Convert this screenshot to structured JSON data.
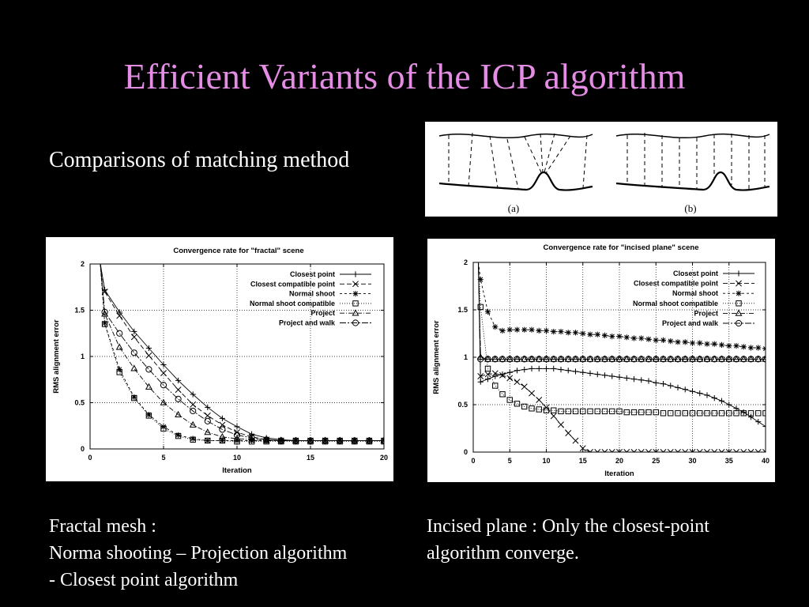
{
  "slide": {
    "title": "Efficient Variants of the ICP algorithm",
    "title_color": "#e58de5",
    "subtitle": "Comparisons of matching method",
    "diagram": {
      "label_a": "(a)",
      "label_b": "(b)"
    },
    "caption_left": [
      "Fractal mesh :",
      "Norma shooting – Projection algorithm",
      "- Closest point algorithm"
    ],
    "caption_right": [
      "Incised plane : Only the closest-point",
      "algorithm converge."
    ]
  },
  "chart_data": [
    {
      "type": "line",
      "title": "Convergence rate for \"fractal\" scene",
      "xlabel": "Iteration",
      "ylabel": "RMS alignment error",
      "xlim": [
        0,
        20
      ],
      "ylim": [
        0,
        2
      ],
      "xticks": [
        0,
        5,
        10,
        15,
        20
      ],
      "yticks": [
        0,
        0.5,
        1,
        1.5,
        2
      ],
      "ytick_labels": [
        "0",
        "0.5",
        "1",
        "1.5",
        "2"
      ],
      "grid": true,
      "legend_position": "top-right",
      "series": [
        {
          "name": "Closest point",
          "marker": "plus",
          "dash": "",
          "x": [
            0.7,
            1,
            2,
            3,
            4,
            5,
            6,
            7,
            8,
            9,
            10,
            11,
            12,
            13,
            14,
            15,
            16,
            17,
            18,
            19,
            20
          ],
          "y": [
            2.0,
            1.72,
            1.48,
            1.27,
            1.09,
            0.91,
            0.74,
            0.59,
            0.45,
            0.33,
            0.24,
            0.16,
            0.12,
            0.1,
            0.09,
            0.09,
            0.09,
            0.09,
            0.09,
            0.09,
            0.09
          ]
        },
        {
          "name": "Closest compatible point",
          "marker": "x",
          "dash": "6,3",
          "x": [
            0.7,
            1,
            2,
            3,
            4,
            5,
            6,
            7,
            8,
            9,
            10,
            11,
            12,
            13,
            14,
            15,
            16,
            17,
            18,
            19,
            20
          ],
          "y": [
            2.0,
            1.7,
            1.44,
            1.21,
            1.01,
            0.82,
            0.64,
            0.48,
            0.36,
            0.26,
            0.18,
            0.13,
            0.1,
            0.09,
            0.09,
            0.09,
            0.09,
            0.09,
            0.09,
            0.09,
            0.09
          ]
        },
        {
          "name": "Normal shoot",
          "marker": "star",
          "dash": "3,3",
          "x": [
            0.7,
            1,
            2,
            3,
            4,
            5,
            6,
            7,
            8,
            9,
            10,
            11,
            12,
            13,
            14,
            15,
            16,
            17,
            18,
            19,
            20
          ],
          "y": [
            2.0,
            1.36,
            0.86,
            0.56,
            0.37,
            0.24,
            0.15,
            0.11,
            0.09,
            0.09,
            0.09,
            0.09,
            0.09,
            0.09,
            0.09,
            0.09,
            0.09,
            0.09,
            0.09,
            0.09,
            0.09
          ]
        },
        {
          "name": "Normal shoot compatible",
          "marker": "square",
          "dash": "1,2",
          "x": [
            0.7,
            1,
            2,
            3,
            4,
            5,
            6,
            7,
            8,
            9,
            10,
            11,
            12,
            13,
            14,
            15,
            16,
            17,
            18,
            19,
            20
          ],
          "y": [
            2.0,
            1.35,
            0.83,
            0.55,
            0.36,
            0.22,
            0.14,
            0.1,
            0.09,
            0.09,
            0.08,
            0.08,
            0.08,
            0.08,
            0.08,
            0.08,
            0.08,
            0.08,
            0.08,
            0.08,
            0.08
          ]
        },
        {
          "name": "Project",
          "marker": "triangle",
          "dash": "6,2,1,2",
          "x": [
            0.7,
            1,
            2,
            3,
            4,
            5,
            6,
            7,
            8,
            9,
            10,
            11,
            12,
            13,
            14,
            15,
            16,
            17,
            18,
            19,
            20
          ],
          "y": [
            2.0,
            1.46,
            1.1,
            0.87,
            0.67,
            0.5,
            0.37,
            0.26,
            0.18,
            0.13,
            0.11,
            0.1,
            0.09,
            0.09,
            0.09,
            0.09,
            0.09,
            0.09,
            0.09,
            0.09,
            0.09
          ]
        },
        {
          "name": "Project and walk",
          "marker": "circle",
          "dash": "8,2,2,2",
          "x": [
            0.7,
            1,
            2,
            3,
            4,
            5,
            6,
            7,
            8,
            9,
            10,
            11,
            12,
            13,
            14,
            15,
            16,
            17,
            18,
            19,
            20
          ],
          "y": [
            2.0,
            1.48,
            1.25,
            1.04,
            0.86,
            0.69,
            0.54,
            0.41,
            0.3,
            0.21,
            0.15,
            0.12,
            0.1,
            0.09,
            0.09,
            0.09,
            0.09,
            0.09,
            0.09,
            0.09,
            0.09
          ]
        }
      ]
    },
    {
      "type": "line",
      "title": "Convergence rate for \"incised plane\" scene",
      "xlabel": "Iteration",
      "ylabel": "RMS alignment error",
      "xlim": [
        0,
        40
      ],
      "ylim": [
        0,
        2
      ],
      "xticks": [
        0,
        5,
        10,
        15,
        20,
        25,
        30,
        35,
        40
      ],
      "yticks": [
        0,
        0.5,
        1,
        1.5,
        2
      ],
      "ytick_labels": [
        "0",
        "0.5",
        "1",
        "1.5",
        "2"
      ],
      "grid": true,
      "legend_position": "top-right",
      "series": [
        {
          "name": "Closest point",
          "marker": "plus",
          "dash": "",
          "x": [
            0.7,
            1,
            2,
            3,
            4,
            5,
            6,
            7,
            8,
            9,
            10,
            11,
            12,
            13,
            14,
            15,
            16,
            17,
            18,
            19,
            20,
            21,
            22,
            23,
            24,
            25,
            26,
            27,
            28,
            29,
            30,
            31,
            32,
            33,
            34,
            35,
            36,
            37,
            38,
            39,
            40
          ],
          "y": [
            2.0,
            0.74,
            0.77,
            0.8,
            0.82,
            0.84,
            0.86,
            0.87,
            0.88,
            0.88,
            0.88,
            0.88,
            0.87,
            0.86,
            0.85,
            0.84,
            0.83,
            0.82,
            0.81,
            0.8,
            0.79,
            0.78,
            0.77,
            0.76,
            0.75,
            0.73,
            0.72,
            0.7,
            0.68,
            0.66,
            0.64,
            0.62,
            0.6,
            0.57,
            0.54,
            0.5,
            0.46,
            0.42,
            0.37,
            0.32,
            0.27
          ]
        },
        {
          "name": "Closest compatible point",
          "marker": "x",
          "dash": "6,3",
          "x": [
            0.7,
            1,
            2,
            3,
            4,
            5,
            6,
            7,
            8,
            9,
            10,
            11,
            12,
            13,
            14,
            15,
            16,
            17,
            18,
            19,
            20,
            21,
            22,
            23,
            24,
            25,
            26,
            27,
            28,
            29,
            30,
            31,
            32,
            33,
            34,
            35,
            36,
            37,
            38,
            39,
            40
          ],
          "y": [
            2.0,
            0.8,
            0.82,
            0.83,
            0.81,
            0.78,
            0.74,
            0.69,
            0.62,
            0.55,
            0.47,
            0.38,
            0.29,
            0.2,
            0.12,
            0.04,
            0.0,
            0.0,
            0.0,
            0.0,
            0.0,
            0.0,
            0.0,
            0.0,
            0.0,
            0.0,
            0.0,
            0.0,
            0.0,
            0.0,
            0.0,
            0.0,
            0.0,
            0.0,
            0.0,
            0.0,
            0.0,
            0.0,
            0.0,
            0.0,
            0.0
          ]
        },
        {
          "name": "Normal shoot",
          "marker": "star",
          "dash": "3,3",
          "x": [
            0.7,
            1,
            2,
            3,
            4,
            5,
            6,
            7,
            8,
            9,
            10,
            11,
            12,
            13,
            14,
            15,
            16,
            17,
            18,
            19,
            20,
            21,
            22,
            23,
            24,
            25,
            26,
            27,
            28,
            29,
            30,
            31,
            32,
            33,
            34,
            35,
            36,
            37,
            38,
            39,
            40
          ],
          "y": [
            2.0,
            1.82,
            1.48,
            1.32,
            1.28,
            1.29,
            1.29,
            1.29,
            1.29,
            1.28,
            1.28,
            1.27,
            1.27,
            1.26,
            1.26,
            1.25,
            1.24,
            1.24,
            1.23,
            1.22,
            1.22,
            1.21,
            1.2,
            1.2,
            1.19,
            1.18,
            1.18,
            1.17,
            1.16,
            1.16,
            1.15,
            1.15,
            1.14,
            1.14,
            1.13,
            1.12,
            1.12,
            1.11,
            1.1,
            1.1,
            1.09
          ]
        },
        {
          "name": "Normal shoot compatible",
          "marker": "square",
          "dash": "1,2",
          "x": [
            0.7,
            1,
            2,
            3,
            4,
            5,
            6,
            7,
            8,
            9,
            10,
            11,
            12,
            13,
            14,
            15,
            16,
            17,
            18,
            19,
            20,
            21,
            22,
            23,
            24,
            25,
            26,
            27,
            28,
            29,
            30,
            31,
            32,
            33,
            34,
            35,
            36,
            37,
            38,
            39,
            40
          ],
          "y": [
            2.0,
            1.53,
            0.88,
            0.7,
            0.61,
            0.55,
            0.51,
            0.48,
            0.46,
            0.45,
            0.44,
            0.44,
            0.43,
            0.43,
            0.43,
            0.43,
            0.43,
            0.43,
            0.43,
            0.43,
            0.43,
            0.42,
            0.42,
            0.42,
            0.42,
            0.42,
            0.41,
            0.41,
            0.41,
            0.41,
            0.41,
            0.41,
            0.41,
            0.41,
            0.41,
            0.41,
            0.41,
            0.41,
            0.41,
            0.41,
            0.41
          ]
        },
        {
          "name": "Project",
          "marker": "triangle",
          "dash": "6,2,1,2",
          "x": [
            0.7,
            1,
            2,
            3,
            4,
            5,
            6,
            7,
            8,
            9,
            10,
            11,
            12,
            13,
            14,
            15,
            16,
            17,
            18,
            19,
            20,
            21,
            22,
            23,
            24,
            25,
            26,
            27,
            28,
            29,
            30,
            31,
            32,
            33,
            34,
            35,
            36,
            37,
            38,
            39,
            40
          ],
          "y": [
            2.0,
            1.0,
            0.98,
            0.98,
            0.98,
            0.98,
            0.98,
            0.98,
            0.98,
            0.98,
            0.98,
            0.98,
            0.98,
            0.98,
            0.98,
            0.98,
            0.98,
            0.98,
            0.98,
            0.98,
            0.98,
            0.98,
            0.98,
            0.98,
            0.98,
            0.98,
            0.98,
            0.98,
            0.98,
            0.98,
            0.98,
            0.98,
            0.98,
            0.98,
            0.98,
            0.98,
            0.98,
            0.98,
            0.98,
            0.98,
            0.98
          ]
        },
        {
          "name": "Project and walk",
          "marker": "circle",
          "dash": "8,2,2,2",
          "x": [
            0.7,
            1,
            2,
            3,
            4,
            5,
            6,
            7,
            8,
            9,
            10,
            11,
            12,
            13,
            14,
            15,
            16,
            17,
            18,
            19,
            20,
            21,
            22,
            23,
            24,
            25,
            26,
            27,
            28,
            29,
            30,
            31,
            32,
            33,
            34,
            35,
            36,
            37,
            38,
            39,
            40
          ],
          "y": [
            2.0,
            0.98,
            0.98,
            0.98,
            0.98,
            0.98,
            0.98,
            0.98,
            0.98,
            0.98,
            0.98,
            0.98,
            0.98,
            0.98,
            0.98,
            0.98,
            0.98,
            0.98,
            0.98,
            0.98,
            0.98,
            0.98,
            0.98,
            0.98,
            0.98,
            0.98,
            0.98,
            0.98,
            0.98,
            0.98,
            0.98,
            0.98,
            0.98,
            0.98,
            0.98,
            0.98,
            0.98,
            0.98,
            0.98,
            0.98,
            0.98
          ]
        }
      ]
    }
  ]
}
